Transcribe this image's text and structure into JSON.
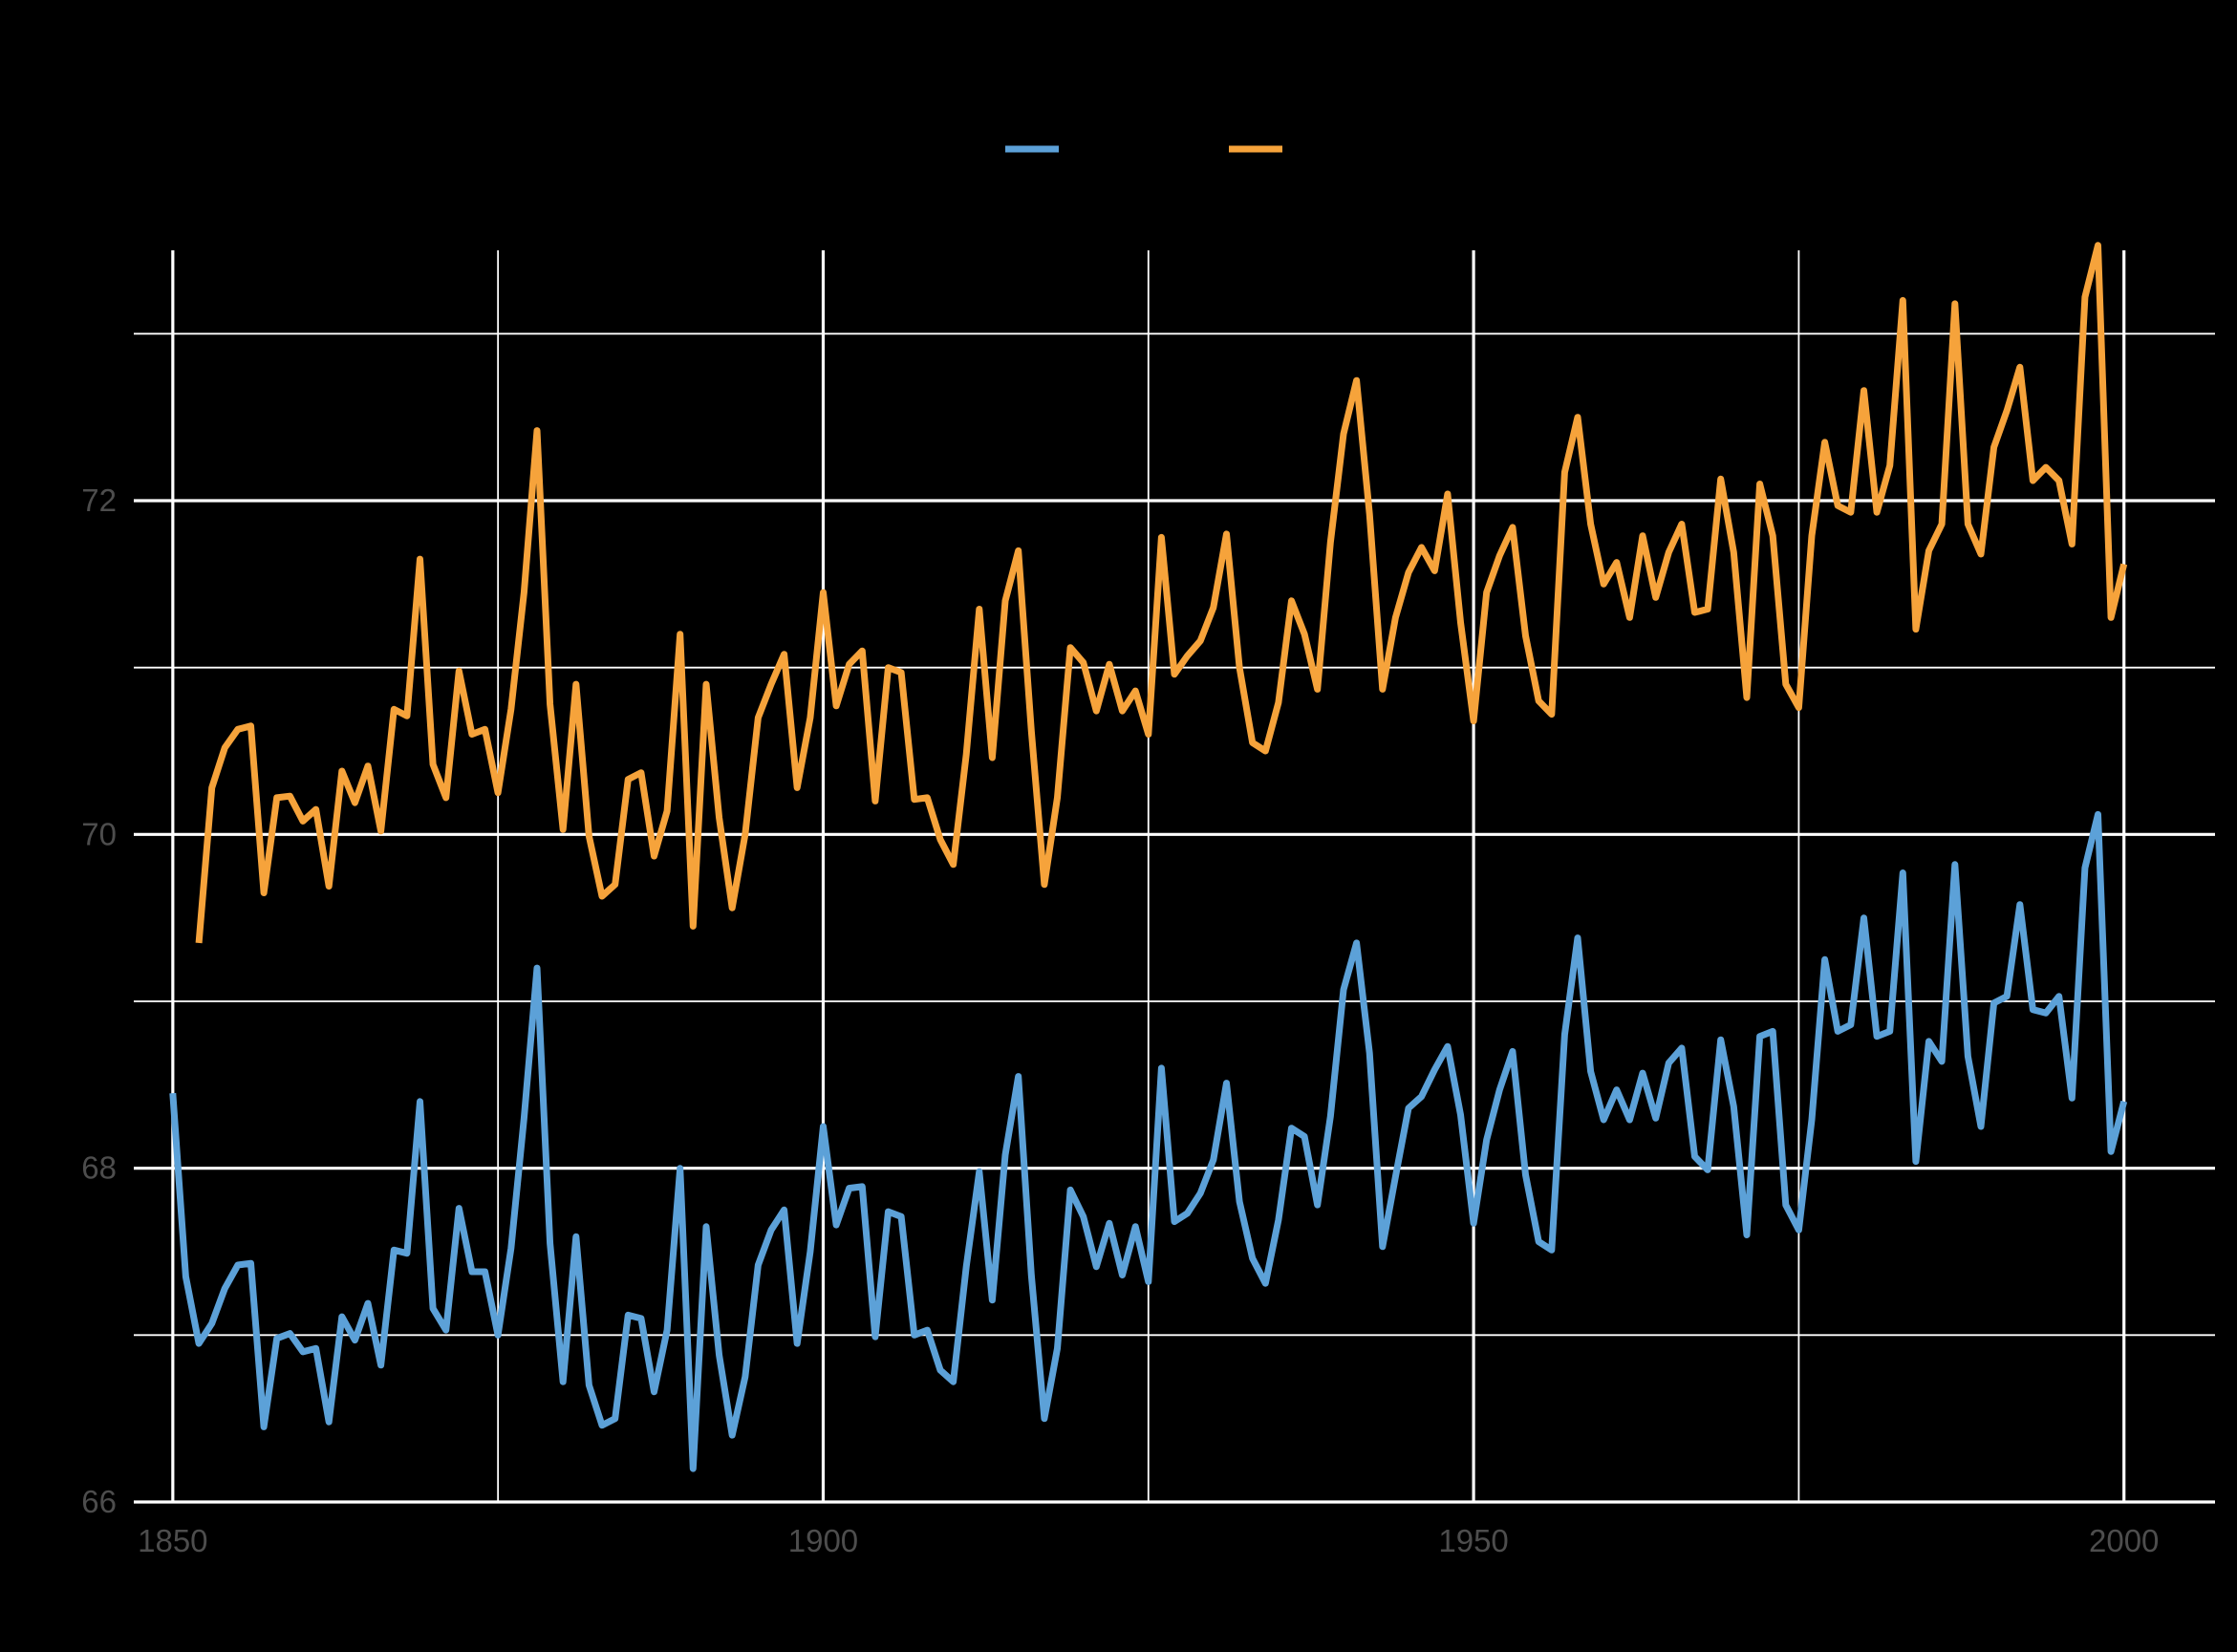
{
  "chart_data": {
    "type": "line",
    "title": "",
    "xlabel": "",
    "ylabel": "",
    "xlim": [
      1847,
      2007
    ],
    "ylim": [
      66,
      73.5
    ],
    "x_ticks": [
      "1850",
      "1900",
      "1950",
      "2000"
    ],
    "y_ticks": [
      "66",
      "68",
      "70",
      "72"
    ],
    "grid": true,
    "legend_position": "top",
    "series": [
      {
        "color": "#5ca1d8",
        "x_start": 1850,
        "values": [
          68.45,
          67.35,
          66.95,
          67.07,
          67.28,
          67.42,
          67.43,
          66.45,
          66.98,
          67.01,
          66.9,
          66.92,
          66.48,
          67.11,
          66.97,
          67.19,
          66.82,
          67.51,
          67.49,
          68.4,
          67.16,
          67.03,
          67.76,
          67.38,
          67.38,
          67.0,
          67.52,
          68.3,
          69.2,
          67.55,
          66.72,
          67.59,
          66.7,
          66.46,
          66.5,
          67.12,
          67.1,
          66.66,
          67.03,
          68.0,
          66.2,
          67.65,
          66.88,
          66.4,
          66.75,
          67.42,
          67.63,
          67.75,
          66.95,
          67.5,
          68.25,
          67.66,
          67.88,
          67.89,
          66.99,
          67.74,
          67.71,
          67.0,
          67.03,
          66.79,
          66.72,
          67.41,
          67.98,
          67.21,
          68.08,
          68.55,
          67.36,
          66.5,
          66.92,
          67.87,
          67.71,
          67.41,
          67.67,
          67.36,
          67.65,
          67.32,
          68.6,
          67.68,
          67.73,
          67.85,
          68.05,
          68.51,
          67.8,
          67.46,
          67.31,
          67.69,
          68.24,
          68.19,
          67.78,
          68.31,
          69.07,
          69.35,
          68.69,
          67.53,
          67.95,
          68.36,
          68.43,
          68.59,
          68.73,
          68.32,
          67.67,
          68.17,
          68.47,
          68.7,
          67.96,
          67.56,
          67.51,
          68.8,
          69.38,
          68.58,
          68.29,
          68.47,
          68.29,
          68.57,
          68.3,
          68.63,
          68.72,
          68.07,
          67.99,
          68.77,
          68.37,
          67.6,
          68.79,
          68.82,
          67.78,
          67.63,
          68.29,
          69.25,
          68.82,
          68.86,
          69.5,
          68.79,
          68.82,
          69.77,
          68.04,
          68.76,
          68.64,
          69.82,
          68.67,
          68.25,
          68.99,
          69.03,
          69.58,
          68.95,
          68.93,
          69.03,
          68.42,
          69.8,
          70.12,
          68.1,
          68.4
        ]
      },
      {
        "color": "#f6a33b",
        "x_start": 1852,
        "values": [
          69.35,
          70.28,
          70.52,
          70.63,
          70.65,
          69.65,
          70.22,
          70.23,
          70.08,
          70.15,
          69.69,
          70.38,
          70.19,
          70.41,
          70.02,
          70.75,
          70.71,
          71.65,
          70.42,
          70.22,
          70.98,
          70.6,
          70.63,
          70.25,
          70.75,
          71.45,
          72.42,
          70.78,
          70.03,
          70.9,
          69.99,
          69.63,
          69.7,
          70.33,
          70.37,
          69.87,
          70.14,
          71.2,
          69.45,
          70.9,
          70.1,
          69.56,
          70.0,
          70.7,
          70.9,
          71.08,
          70.28,
          70.7,
          71.45,
          70.77,
          71.02,
          71.1,
          70.2,
          71.0,
          70.97,
          70.21,
          70.22,
          69.97,
          69.82,
          70.48,
          71.35,
          70.46,
          71.4,
          71.7,
          70.62,
          69.7,
          70.22,
          71.12,
          71.03,
          70.74,
          71.02,
          70.74,
          70.86,
          70.6,
          71.78,
          70.96,
          71.07,
          71.16,
          71.36,
          71.8,
          71.0,
          70.55,
          70.5,
          70.79,
          71.4,
          71.2,
          70.87,
          71.75,
          72.4,
          72.72,
          71.92,
          70.87,
          71.3,
          71.57,
          71.72,
          71.58,
          72.04,
          71.27,
          70.68,
          71.45,
          71.67,
          71.84,
          71.19,
          70.8,
          70.72,
          72.17,
          72.5,
          71.86,
          71.5,
          71.63,
          71.3,
          71.79,
          71.42,
          71.69,
          71.86,
          71.33,
          71.35,
          72.13,
          71.69,
          70.82,
          72.1,
          71.79,
          70.9,
          70.76,
          71.79,
          72.35,
          71.97,
          71.93,
          72.66,
          71.93,
          72.21,
          73.2,
          71.23,
          71.7,
          71.86,
          73.18,
          71.86,
          71.68,
          72.32,
          72.54,
          72.8,
          72.12,
          72.2,
          72.12,
          71.74,
          73.22,
          73.53,
          71.3,
          71.62
        ]
      }
    ]
  }
}
